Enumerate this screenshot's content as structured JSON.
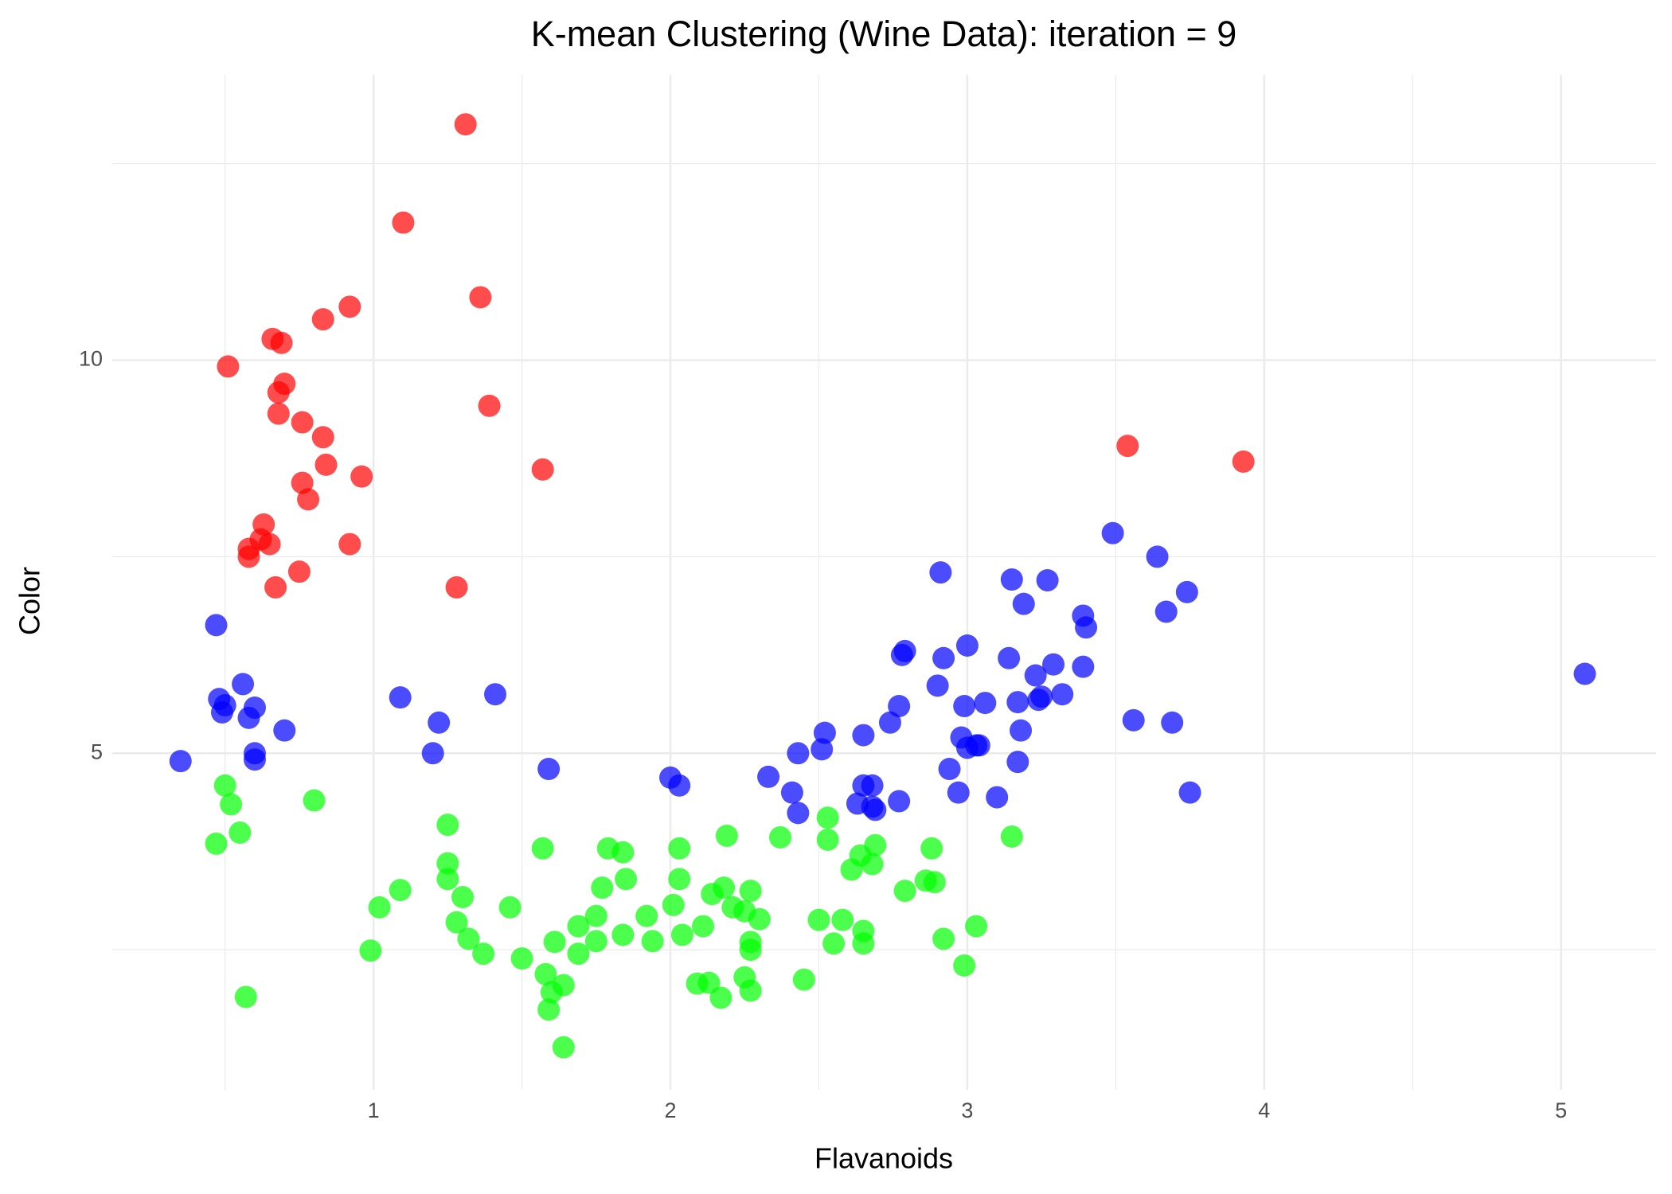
{
  "chart_data": {
    "type": "scatter",
    "title": "K-mean Clustering (Wine Data): iteration =  9",
    "x_label": "Flavanoids",
    "y_label": "Color",
    "xlim": [
      0.12,
      5.32
    ],
    "ylim": [
      0.72,
      13.63
    ],
    "xticks": [
      1,
      2,
      3,
      4,
      5
    ],
    "yticks": [
      5,
      10
    ],
    "minor_xticks": [
      0.5,
      1.5,
      2.5,
      3.5,
      4.5
    ],
    "minor_yticks": [
      2.5,
      7.5,
      12.5
    ],
    "grid": true,
    "alpha": 0.7,
    "series": [
      {
        "color": "#ff0000",
        "x": [
          1.31,
          1.1,
          1.36,
          0.92,
          0.83,
          0.66,
          0.69,
          0.51,
          0.7,
          0.68,
          0.68,
          1.39,
          0.76,
          0.83,
          0.84,
          0.96,
          1.57,
          0.76,
          0.78,
          3.54,
          3.93,
          0.63,
          0.62,
          0.65,
          0.58,
          0.58,
          0.92,
          0.75,
          0.67,
          1.28
        ],
        "values": [
          13.0,
          11.75,
          10.8,
          10.68,
          10.52,
          10.27,
          10.22,
          9.92,
          9.7,
          9.59,
          9.32,
          9.42,
          9.21,
          9.02,
          8.67,
          8.52,
          8.61,
          8.44,
          8.23,
          8.91,
          8.71,
          7.91,
          7.72,
          7.66,
          7.6,
          7.5,
          7.66,
          7.31,
          7.11,
          7.11
        ]
      },
      {
        "color": "#0000ff",
        "x": [
          0.35,
          0.47,
          0.56,
          0.48,
          0.49,
          0.5,
          0.6,
          0.58,
          0.7,
          0.6,
          0.6,
          1.09,
          1.22,
          1.2,
          1.41,
          1.59,
          2.0,
          2.03,
          2.33,
          2.41,
          2.43,
          2.43,
          2.52,
          2.51,
          2.65,
          2.65,
          2.63,
          2.68,
          2.69,
          2.68,
          2.77,
          2.74,
          2.77,
          2.78,
          2.79,
          2.9,
          2.92,
          2.91,
          3.0,
          2.99,
          2.98,
          3.0,
          3.03,
          3.04,
          3.06,
          2.94,
          2.97,
          3.1,
          3.14,
          3.15,
          3.19,
          3.17,
          3.18,
          3.17,
          3.23,
          3.24,
          3.25,
          3.29,
          3.27,
          3.32,
          3.39,
          3.4,
          3.39,
          3.49,
          3.56,
          3.64,
          3.67,
          3.74,
          3.69,
          3.75,
          5.08
        ],
        "values": [
          4.9,
          6.63,
          5.88,
          5.69,
          5.52,
          5.61,
          5.58,
          5.45,
          5.29,
          5.0,
          4.92,
          5.71,
          5.39,
          5.0,
          5.75,
          4.8,
          4.69,
          4.59,
          4.7,
          4.5,
          4.24,
          5.0,
          5.26,
          5.05,
          5.23,
          4.59,
          4.36,
          4.59,
          4.28,
          4.32,
          4.39,
          5.39,
          5.6,
          6.25,
          6.3,
          5.86,
          6.21,
          7.3,
          6.37,
          5.6,
          5.2,
          5.07,
          5.1,
          5.1,
          5.64,
          4.8,
          4.5,
          4.44,
          6.21,
          7.21,
          6.9,
          5.65,
          5.29,
          4.89,
          5.99,
          5.68,
          5.72,
          6.13,
          7.2,
          5.75,
          6.75,
          6.6,
          6.1,
          7.8,
          5.42,
          7.5,
          6.8,
          7.05,
          5.39,
          4.5,
          6.01
        ]
      },
      {
        "color": "#00ff00",
        "x": [
          0.5,
          0.52,
          0.55,
          0.47,
          0.8,
          0.57,
          0.99,
          1.02,
          1.09,
          1.25,
          1.25,
          1.25,
          1.3,
          1.28,
          1.32,
          1.37,
          1.46,
          1.5,
          1.57,
          1.61,
          1.58,
          1.6,
          1.59,
          1.64,
          1.64,
          1.69,
          1.69,
          1.75,
          1.75,
          1.77,
          1.79,
          1.84,
          1.85,
          1.84,
          1.92,
          1.94,
          2.01,
          2.03,
          2.03,
          2.04,
          2.09,
          2.13,
          2.11,
          2.14,
          2.18,
          2.17,
          2.19,
          2.21,
          2.25,
          2.3,
          2.27,
          2.25,
          2.27,
          2.27,
          2.27,
          2.37,
          2.45,
          2.5,
          2.53,
          2.53,
          2.55,
          2.58,
          2.61,
          2.64,
          2.65,
          2.65,
          2.68,
          2.69,
          2.79,
          2.86,
          2.89,
          2.88,
          2.92,
          2.99,
          3.03,
          3.15
        ],
        "values": [
          4.59,
          4.35,
          3.99,
          3.85,
          4.4,
          1.9,
          2.49,
          3.04,
          3.26,
          4.09,
          3.6,
          3.4,
          3.17,
          2.85,
          2.64,
          2.45,
          3.04,
          2.39,
          3.79,
          2.6,
          2.19,
          1.96,
          1.74,
          2.05,
          1.26,
          2.8,
          2.45,
          2.61,
          2.93,
          3.29,
          3.79,
          3.74,
          3.4,
          2.69,
          2.93,
          2.61,
          3.07,
          3.79,
          3.4,
          2.69,
          2.07,
          2.08,
          2.8,
          3.21,
          3.29,
          1.89,
          3.95,
          3.04,
          2.99,
          2.89,
          3.25,
          2.15,
          1.98,
          2.5,
          2.6,
          3.93,
          2.12,
          2.88,
          4.18,
          3.9,
          2.58,
          2.88,
          3.52,
          3.7,
          2.74,
          2.58,
          3.59,
          3.83,
          3.25,
          3.38,
          3.36,
          3.79,
          2.64,
          2.3,
          2.8,
          3.94
        ]
      }
    ]
  }
}
